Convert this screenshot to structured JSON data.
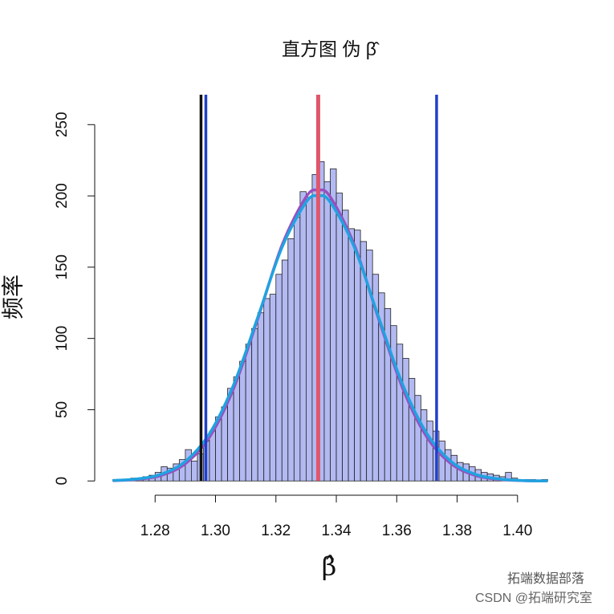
{
  "chart_data": {
    "type": "histogram",
    "title": "直方图 伪 β̂",
    "x_label": "β̂",
    "y_label": "频率",
    "annotations": [
      "拓端数据部落",
      "CSDN @拓端研究室"
    ],
    "bins": [
      1.266,
      1.268,
      1.27,
      1.272,
      1.274,
      1.276,
      1.278,
      1.28,
      1.282,
      1.284,
      1.286,
      1.288,
      1.29,
      1.292,
      1.294,
      1.296,
      1.298,
      1.3,
      1.302,
      1.304,
      1.306,
      1.308,
      1.31,
      1.312,
      1.314,
      1.316,
      1.318,
      1.32,
      1.322,
      1.324,
      1.326,
      1.328,
      1.33,
      1.332,
      1.334,
      1.336,
      1.338,
      1.34,
      1.342,
      1.344,
      1.346,
      1.348,
      1.35,
      1.352,
      1.354,
      1.356,
      1.358,
      1.36,
      1.362,
      1.364,
      1.366,
      1.368,
      1.37,
      1.372,
      1.374,
      1.376,
      1.378,
      1.38,
      1.382,
      1.384,
      1.386,
      1.388,
      1.39,
      1.392,
      1.394,
      1.396,
      1.398,
      1.4,
      1.402,
      1.404,
      1.406,
      1.408,
      1.41
    ],
    "values": [
      1,
      1,
      1,
      2,
      2,
      3,
      4,
      6,
      10,
      9,
      12,
      15,
      22,
      14,
      19,
      28,
      35,
      45,
      52,
      65,
      73,
      84,
      96,
      107,
      118,
      128,
      131,
      145,
      155,
      170,
      185,
      203,
      199,
      215,
      224,
      210,
      219,
      202,
      190,
      177,
      176,
      168,
      162,
      145,
      132,
      121,
      109,
      96,
      86,
      72,
      60,
      50,
      42,
      35,
      28,
      22,
      18,
      13,
      12,
      10,
      8,
      6,
      5,
      4,
      3,
      6,
      2,
      1,
      1,
      1,
      0,
      1
    ],
    "color": "#b3baf2",
    "curves": [
      {
        "color": "#9a4fc0",
        "x": [
          1.266,
          1.274,
          1.282,
          1.29,
          1.298,
          1.306,
          1.314,
          1.322,
          1.33,
          1.334,
          1.338,
          1.346,
          1.354,
          1.362,
          1.37,
          1.378,
          1.386,
          1.394,
          1.402,
          1.41
        ],
        "values": [
          0.2,
          1.1,
          3.9,
          12.1,
          30.7,
          64.9,
          113.8,
          165.3,
          199.3,
          204,
          199.3,
          165.3,
          113.8,
          64.9,
          30.7,
          12.1,
          3.9,
          1.1,
          0.2,
          0.05
        ]
      },
      {
        "color": "#1fa3e0",
        "x": [
          1.266,
          1.274,
          1.282,
          1.29,
          1.298,
          1.306,
          1.314,
          1.322,
          1.33,
          1.334,
          1.338,
          1.346,
          1.354,
          1.362,
          1.37,
          1.378,
          1.386,
          1.394,
          1.402,
          1.41
        ],
        "values": [
          0.3,
          1.4,
          4.7,
          13.7,
          33.2,
          67.5,
          114.9,
          163.8,
          195.6,
          200,
          195.6,
          163.8,
          114.9,
          67.5,
          33.2,
          13.7,
          4.7,
          1.4,
          0.3,
          0.07
        ]
      }
    ],
    "vlines": [
      {
        "x": 1.2952,
        "color": "#111111"
      },
      {
        "x": 1.2968,
        "color": "#2040c8"
      },
      {
        "x": 1.334,
        "color": "#e0566a"
      },
      {
        "x": 1.3732,
        "color": "#2040c8"
      }
    ],
    "xlim": [
      1.26,
      1.416
    ],
    "ylim": [
      -10,
      271
    ],
    "xticks": [
      1.28,
      {
        "value": 1.3,
        "label": "1.30"
      },
      1.32,
      1.34,
      1.36,
      1.38,
      {
        "value": 1.4,
        "label": "1.40"
      }
    ],
    "yticks": [
      0,
      50,
      100,
      150,
      200,
      250
    ]
  }
}
